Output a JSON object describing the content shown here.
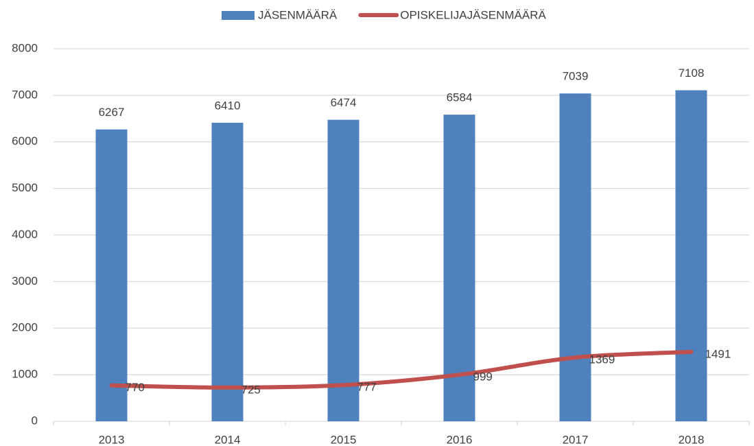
{
  "chart_data": {
    "type": "bar_line",
    "categories": [
      "2013",
      "2014",
      "2015",
      "2016",
      "2017",
      "2018"
    ],
    "series": [
      {
        "name": "JÄSENMÄÄRÄ",
        "type": "bar",
        "color": "#4f81bd",
        "values": [
          6267,
          6410,
          6474,
          6584,
          7039,
          7108
        ]
      },
      {
        "name": "OPISKELIJAJÄSENMÄÄRÄ",
        "type": "line",
        "color": "#c0504d",
        "values": [
          770,
          725,
          777,
          999,
          1369,
          1491
        ]
      }
    ],
    "ylim": [
      0,
      8000
    ],
    "yticks": [
      0,
      1000,
      2000,
      3000,
      4000,
      5000,
      6000,
      7000,
      8000
    ],
    "grid": true,
    "legend": "top"
  }
}
